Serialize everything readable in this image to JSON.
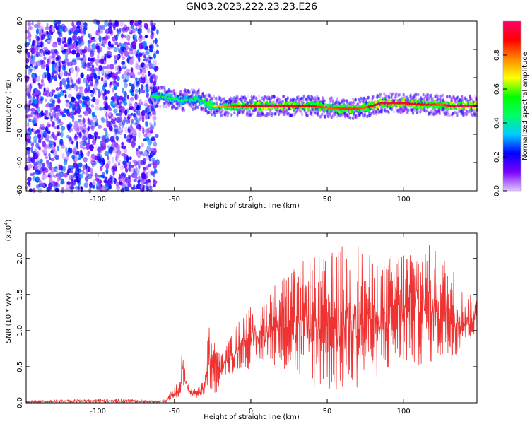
{
  "title": "GN03.2023.222.23.23.E26",
  "chart_data": [
    {
      "type": "heatmap",
      "xlabel": "Height of straight line (km)",
      "ylabel": "Frequency (Hz)",
      "xlim": [
        -147,
        148
      ],
      "ylim": [
        -60,
        60
      ],
      "x_ticks": [
        -100,
        -50,
        0,
        50,
        100
      ],
      "y_ticks": [
        -60,
        -40,
        -20,
        0,
        20,
        40,
        60
      ],
      "colorbar": {
        "label": "Normalized spectral amplitude",
        "range": [
          0.0,
          1.0
        ],
        "ticks": [
          0.0,
          0.2,
          0.4,
          0.6,
          0.8
        ],
        "colormap": [
          "#e0c8ff",
          "#7b00ff",
          "#0000ff",
          "#00ccff",
          "#00ff66",
          "#00ff00",
          "#ffff00",
          "#ff8800",
          "#ff0000",
          "#ff0066"
        ]
      },
      "noise_region_x": [
        -147,
        -61
      ],
      "ridge": {
        "x": [
          -65,
          -55,
          -45,
          -35,
          -30,
          -25,
          -20,
          -10,
          0,
          10,
          20,
          30,
          40,
          50,
          60,
          70,
          75,
          80,
          85,
          90,
          100,
          110,
          120,
          125,
          130,
          140,
          148
        ],
        "y": [
          7,
          6,
          4,
          5,
          3,
          0,
          0,
          0,
          0,
          0,
          0,
          0,
          0,
          -1,
          -2,
          -2,
          -1,
          0,
          2,
          2,
          2,
          1,
          1,
          1,
          0,
          0,
          0
        ],
        "amplitude": [
          0.5,
          0.5,
          0.45,
          0.5,
          0.55,
          0.6,
          0.75,
          0.85,
          0.9,
          0.95,
          0.95,
          0.9,
          0.9,
          0.8,
          0.85,
          0.85,
          0.8,
          0.9,
          0.95,
          0.95,
          0.95,
          0.9,
          0.85,
          0.8,
          0.9,
          1.0,
          1.0
        ]
      }
    },
    {
      "type": "line",
      "xlabel": "Height of straight line (km)",
      "ylabel": "SNR (10 * v/v)",
      "y_multiplier": "(x10^4)",
      "xlim": [
        -147,
        148
      ],
      "ylim": [
        0,
        2.35
      ],
      "x_ticks": [
        -100,
        -50,
        0,
        50,
        100
      ],
      "y_ticks": [
        0.0,
        0.5,
        1.0,
        1.5,
        2.0
      ],
      "series": [
        {
          "color": "#ee3333",
          "x": [
            -147,
            -120,
            -100,
            -80,
            -60,
            -55,
            -50,
            -46,
            -45,
            -42,
            -40,
            -35,
            -30,
            -28,
            -25,
            -22,
            -20,
            -15,
            -10,
            -5,
            0,
            5,
            10,
            20,
            30,
            40,
            50,
            60,
            70,
            80,
            90,
            100,
            110,
            120,
            130,
            140,
            148
          ],
          "y_lower": [
            0.0,
            0.0,
            0.0,
            0.0,
            0.0,
            0.0,
            0.05,
            0.1,
            0.2,
            0.12,
            0.1,
            0.05,
            0.1,
            0.2,
            0.15,
            0.1,
            0.3,
            0.4,
            0.4,
            0.5,
            0.45,
            0.5,
            0.55,
            0.5,
            0.3,
            0.2,
            0.15,
            0.1,
            0.2,
            0.3,
            0.4,
            0.5,
            0.5,
            0.55,
            0.5,
            0.8,
            0.9
          ],
          "y_upper": [
            0.03,
            0.05,
            0.06,
            0.05,
            0.03,
            0.08,
            0.22,
            0.35,
            0.77,
            0.4,
            0.2,
            0.2,
            0.35,
            1.08,
            1.04,
            0.8,
            0.65,
            0.85,
            1.05,
            1.25,
            1.35,
            1.35,
            1.5,
            1.8,
            1.9,
            2.05,
            2.05,
            2.2,
            2.25,
            2.0,
            2.05,
            2.18,
            2.3,
            2.15,
            2.0,
            1.5,
            1.5
          ]
        }
      ]
    }
  ]
}
